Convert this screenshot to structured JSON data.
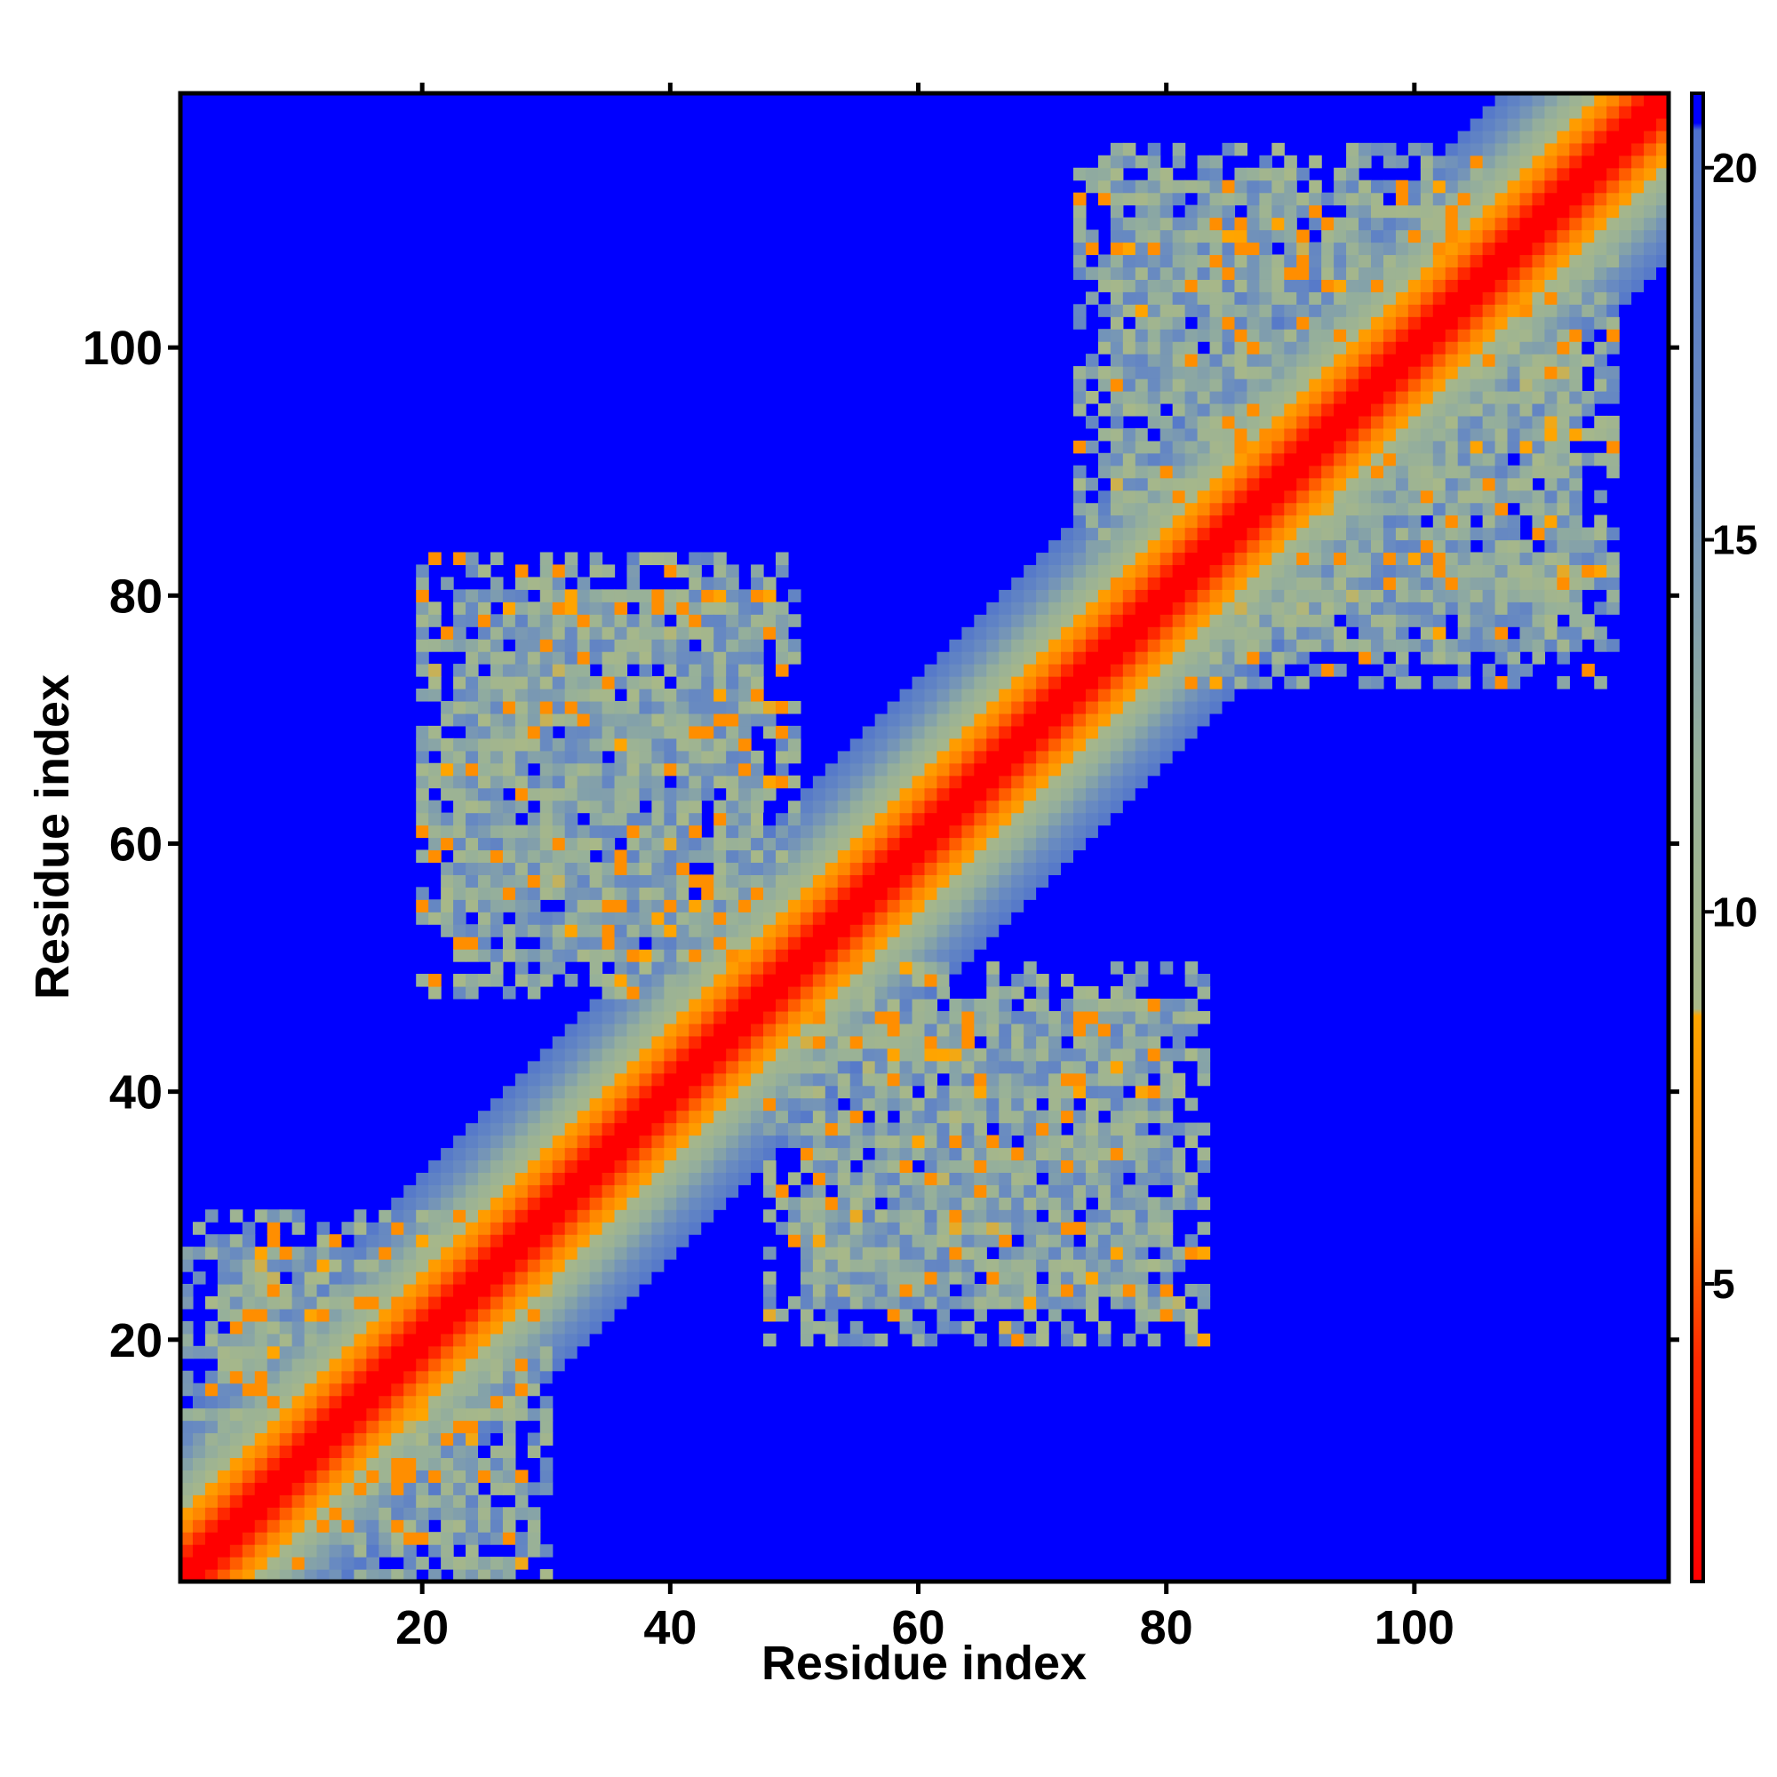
{
  "chart_data": {
    "type": "heatmap",
    "description_of_values": "pairwise residue distance map (symmetric)",
    "title": "",
    "xlabel": "Residue index",
    "ylabel": "Residue index",
    "xlim": [
      1,
      120
    ],
    "ylim": [
      1,
      120
    ],
    "x_ticks": [
      20,
      40,
      60,
      80,
      100
    ],
    "y_ticks": [
      20,
      40,
      60,
      80,
      100
    ],
    "grid": false,
    "colorbar": {
      "placement": "right",
      "range": [
        1,
        21
      ],
      "ticks": [
        5,
        10,
        15,
        20
      ],
      "color_stops": [
        {
          "value": 1,
          "color": "#ff0000"
        },
        {
          "value": 4,
          "color": "#ff2a00"
        },
        {
          "value": 6,
          "color": "#ff7f00"
        },
        {
          "value": 8.6,
          "color": "#ffa500"
        },
        {
          "value": 8.7,
          "color": "#a8b888"
        },
        {
          "value": 12,
          "color": "#96b09a"
        },
        {
          "value": 16,
          "color": "#6a8cc0"
        },
        {
          "value": 20.5,
          "color": "#4f72cc"
        },
        {
          "value": 20.6,
          "color": "#0000ff"
        },
        {
          "value": 21,
          "color": "#0000ff"
        }
      ]
    },
    "background_color": "#0000ff",
    "structure": {
      "diagonal_band": {
        "core_value": 1,
        "half_width_residues": 14
      },
      "contact_regions": [
        {
          "x_range": [
            1,
            30
          ],
          "y_range": [
            1,
            30
          ],
          "mean_value": 13
        },
        {
          "x_range": [
            20,
            50
          ],
          "y_range": [
            48,
            83
          ],
          "mean_value": 13
        },
        {
          "x_range": [
            48,
            83
          ],
          "y_range": [
            20,
            50
          ],
          "mean_value": 13
        },
        {
          "x_range": [
            73,
            116
          ],
          "y_range": [
            73,
            116
          ],
          "mean_value": 13
        }
      ]
    }
  }
}
